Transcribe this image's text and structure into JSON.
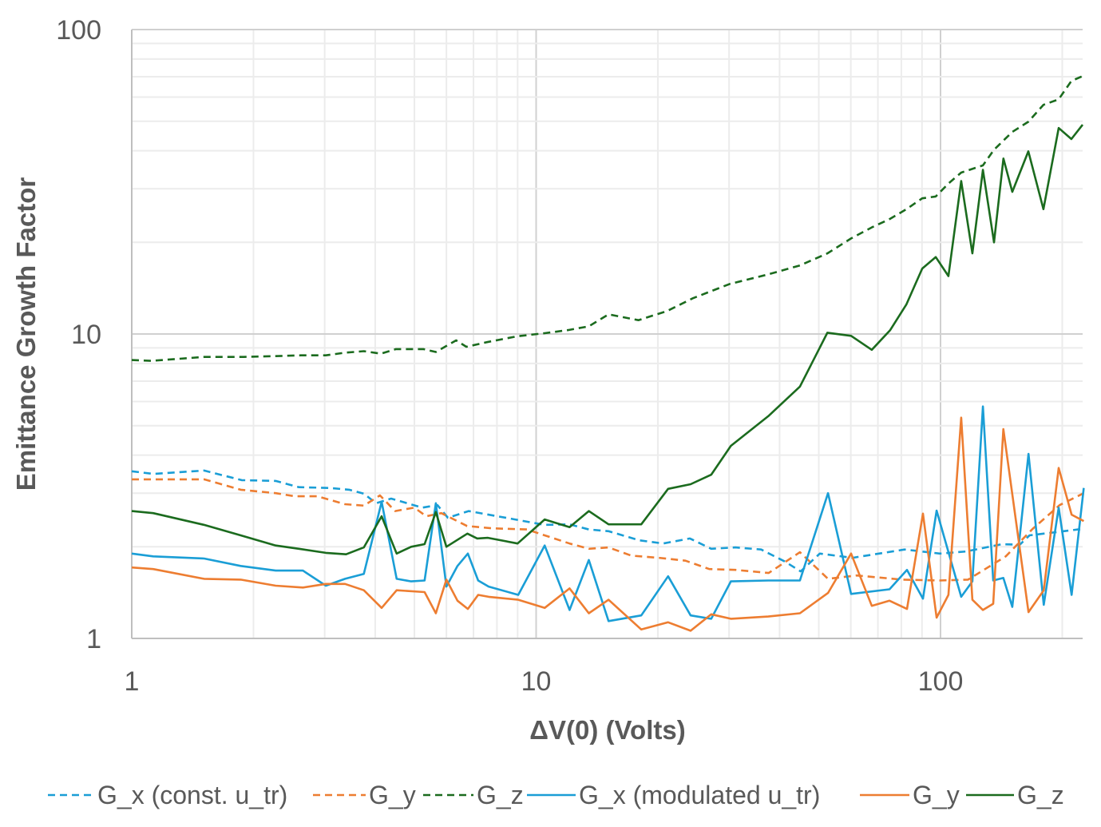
{
  "chart_data": {
    "type": "line",
    "xscale": "log",
    "yscale": "log",
    "xlabel": "ΔV(0) (Volts)",
    "ylabel": "Emittance Growth Factor",
    "xlim": [
      1,
      225
    ],
    "ylim": [
      1,
      100
    ],
    "x_ticks": [
      "1",
      "10",
      "100"
    ],
    "y_ticks": [
      "1",
      "10",
      "100"
    ],
    "grid": true,
    "legend_position": "bottom",
    "series": [
      {
        "name": "G_x (const. u_tr)",
        "color": "#1a9ed6",
        "dashed": true,
        "points": [
          [
            1,
            3.54
          ],
          [
            1.13,
            3.47
          ],
          [
            1.51,
            3.56
          ],
          [
            1.87,
            3.31
          ],
          [
            2.27,
            3.29
          ],
          [
            2.59,
            3.14
          ],
          [
            3.09,
            3.12
          ],
          [
            3.45,
            3.08
          ],
          [
            3.75,
            2.99
          ],
          [
            4.02,
            2.78
          ],
          [
            4.38,
            2.88
          ],
          [
            5.23,
            2.69
          ],
          [
            5.7,
            2.74
          ],
          [
            6.05,
            2.49
          ],
          [
            6.81,
            2.62
          ],
          [
            8.87,
            2.46
          ],
          [
            10.5,
            2.36
          ],
          [
            12.1,
            2.37
          ],
          [
            13.5,
            2.28
          ],
          [
            15.1,
            2.25
          ],
          [
            18.0,
            2.1
          ],
          [
            20.6,
            2.05
          ],
          [
            24.0,
            2.13
          ],
          [
            27.1,
            1.97
          ],
          [
            31.1,
            1.99
          ],
          [
            36.0,
            1.96
          ],
          [
            41.2,
            1.79
          ],
          [
            45.1,
            1.66
          ],
          [
            50.3,
            1.9
          ],
          [
            60.6,
            1.84
          ],
          [
            81.5,
            1.96
          ],
          [
            99.6,
            1.9
          ],
          [
            115.6,
            1.93
          ],
          [
            142,
            2.04
          ],
          [
            157,
            2.03
          ],
          [
            166,
            2.18
          ],
          [
            219,
            2.28
          ],
          [
            226,
            2.28
          ]
        ]
      },
      {
        "name": "G_y",
        "color": "#ed7d31",
        "dashed": true,
        "points": [
          [
            1,
            3.33
          ],
          [
            1.51,
            3.33
          ],
          [
            1.86,
            3.08
          ],
          [
            2.27,
            3.0
          ],
          [
            2.53,
            2.93
          ],
          [
            2.88,
            2.93
          ],
          [
            3.37,
            2.76
          ],
          [
            3.75,
            2.73
          ],
          [
            4.11,
            2.95
          ],
          [
            4.48,
            2.62
          ],
          [
            5.0,
            2.69
          ],
          [
            5.35,
            2.52
          ],
          [
            5.83,
            2.58
          ],
          [
            6.75,
            2.34
          ],
          [
            7.77,
            2.3
          ],
          [
            9.49,
            2.28
          ],
          [
            10.5,
            2.18
          ],
          [
            12.1,
            2.05
          ],
          [
            13.5,
            1.97
          ],
          [
            15.1,
            1.99
          ],
          [
            17.2,
            1.87
          ],
          [
            20.1,
            1.84
          ],
          [
            23.4,
            1.8
          ],
          [
            26.8,
            1.69
          ],
          [
            31.1,
            1.68
          ],
          [
            37.6,
            1.64
          ],
          [
            44.9,
            1.92
          ],
          [
            52.7,
            1.57
          ],
          [
            62.0,
            1.61
          ],
          [
            80.4,
            1.56
          ],
          [
            99.4,
            1.55
          ],
          [
            117,
            1.56
          ],
          [
            145,
            1.86
          ],
          [
            169,
            2.29
          ],
          [
            197,
            2.74
          ],
          [
            226,
            3.0
          ]
        ]
      },
      {
        "name": "G_z",
        "color": "#1b6b1e",
        "dashed": true,
        "points": [
          [
            1,
            8.21
          ],
          [
            1.12,
            8.16
          ],
          [
            1.51,
            8.41
          ],
          [
            1.89,
            8.41
          ],
          [
            2.25,
            8.46
          ],
          [
            2.62,
            8.51
          ],
          [
            3.02,
            8.51
          ],
          [
            3.37,
            8.68
          ],
          [
            3.75,
            8.78
          ],
          [
            4.13,
            8.62
          ],
          [
            4.5,
            8.92
          ],
          [
            5.26,
            8.92
          ],
          [
            5.65,
            8.73
          ],
          [
            6.34,
            9.53
          ],
          [
            6.72,
            9.08
          ],
          [
            7.56,
            9.4
          ],
          [
            8.99,
            9.83
          ],
          [
            10.5,
            10.06
          ],
          [
            12.0,
            10.3
          ],
          [
            13.5,
            10.6
          ],
          [
            15.1,
            11.6
          ],
          [
            17.9,
            11.1
          ],
          [
            21.1,
            11.9
          ],
          [
            24.4,
            13.1
          ],
          [
            30.1,
            14.6
          ],
          [
            37.5,
            15.7
          ],
          [
            44.9,
            16.8
          ],
          [
            52.5,
            18.4
          ],
          [
            60.1,
            20.6
          ],
          [
            67.6,
            22.4
          ],
          [
            75.1,
            23.9
          ],
          [
            82.3,
            25.7
          ],
          [
            90.1,
            27.9
          ],
          [
            97.3,
            28.3
          ],
          [
            104.6,
            31.2
          ],
          [
            112.5,
            33.9
          ],
          [
            127.3,
            35.8
          ],
          [
            135.6,
            40.3
          ],
          [
            150.5,
            46.1
          ],
          [
            164.9,
            49.8
          ],
          [
            179.7,
            56.6
          ],
          [
            196,
            59.0
          ],
          [
            210.7,
            67.8
          ],
          [
            224.6,
            70.3
          ]
        ]
      },
      {
        "name": "G_x (modulated u_tr)",
        "color": "#1a9ed6",
        "dashed": false,
        "points": [
          [
            1,
            1.9
          ],
          [
            1.13,
            1.86
          ],
          [
            1.51,
            1.83
          ],
          [
            1.86,
            1.73
          ],
          [
            2.27,
            1.67
          ],
          [
            2.65,
            1.67
          ],
          [
            3.02,
            1.49
          ],
          [
            3.37,
            1.57
          ],
          [
            3.75,
            1.63
          ],
          [
            4.15,
            2.81
          ],
          [
            4.52,
            1.57
          ],
          [
            4.91,
            1.54
          ],
          [
            5.3,
            1.55
          ],
          [
            5.65,
            2.78
          ],
          [
            6.0,
            1.48
          ],
          [
            6.39,
            1.73
          ],
          [
            6.78,
            1.9
          ],
          [
            7.19,
            1.55
          ],
          [
            7.63,
            1.48
          ],
          [
            9.03,
            1.39
          ],
          [
            10.5,
            2.02
          ],
          [
            12.1,
            1.24
          ],
          [
            13.5,
            1.81
          ],
          [
            15.1,
            1.14
          ],
          [
            18.2,
            1.19
          ],
          [
            21.2,
            1.6
          ],
          [
            24.1,
            1.19
          ],
          [
            27.1,
            1.16
          ],
          [
            30.3,
            1.54
          ],
          [
            37.5,
            1.55
          ],
          [
            44.9,
            1.55
          ],
          [
            52.7,
            3.0
          ],
          [
            60.1,
            1.4
          ],
          [
            74.8,
            1.45
          ],
          [
            82.6,
            1.68
          ],
          [
            90.5,
            1.35
          ],
          [
            97.8,
            2.63
          ],
          [
            112.5,
            1.37
          ],
          [
            119.9,
            1.54
          ],
          [
            127.3,
            5.78
          ],
          [
            135,
            1.55
          ],
          [
            143,
            1.58
          ],
          [
            150.5,
            1.27
          ],
          [
            165,
            4.04
          ],
          [
            180,
            1.29
          ],
          [
            196,
            2.69
          ],
          [
            211,
            1.39
          ],
          [
            226,
            3.12
          ]
        ]
      },
      {
        "name": "G_y",
        "color": "#ed7d31",
        "dashed": false,
        "points": [
          [
            1,
            1.71
          ],
          [
            1.13,
            1.69
          ],
          [
            1.51,
            1.57
          ],
          [
            1.86,
            1.56
          ],
          [
            2.27,
            1.49
          ],
          [
            2.65,
            1.47
          ],
          [
            3.02,
            1.51
          ],
          [
            3.37,
            1.51
          ],
          [
            3.75,
            1.44
          ],
          [
            4.15,
            1.26
          ],
          [
            4.52,
            1.44
          ],
          [
            5.3,
            1.42
          ],
          [
            5.65,
            1.21
          ],
          [
            6.0,
            1.56
          ],
          [
            6.39,
            1.33
          ],
          [
            6.78,
            1.25
          ],
          [
            7.19,
            1.39
          ],
          [
            7.63,
            1.37
          ],
          [
            9.03,
            1.34
          ],
          [
            10.5,
            1.26
          ],
          [
            12.1,
            1.46
          ],
          [
            13.5,
            1.21
          ],
          [
            15.1,
            1.34
          ],
          [
            18.2,
            1.07
          ],
          [
            21.2,
            1.13
          ],
          [
            24.1,
            1.06
          ],
          [
            27.1,
            1.2
          ],
          [
            30.3,
            1.16
          ],
          [
            37.5,
            1.18
          ],
          [
            44.9,
            1.21
          ],
          [
            52.7,
            1.41
          ],
          [
            60.1,
            1.9
          ],
          [
            67.6,
            1.28
          ],
          [
            74.8,
            1.33
          ],
          [
            82.6,
            1.25
          ],
          [
            90.5,
            2.57
          ],
          [
            97.8,
            1.17
          ],
          [
            104.6,
            1.39
          ],
          [
            112.5,
            5.31
          ],
          [
            119.9,
            1.34
          ],
          [
            127.3,
            1.24
          ],
          [
            135,
            1.3
          ],
          [
            143,
            4.87
          ],
          [
            165,
            1.22
          ],
          [
            180,
            1.44
          ],
          [
            196,
            3.63
          ],
          [
            211,
            2.55
          ],
          [
            226,
            2.43
          ]
        ]
      },
      {
        "name": "G_z",
        "color": "#1b6b1e",
        "dashed": false,
        "points": [
          [
            1,
            2.62
          ],
          [
            1.13,
            2.58
          ],
          [
            1.51,
            2.36
          ],
          [
            1.86,
            2.18
          ],
          [
            2.27,
            2.02
          ],
          [
            2.59,
            1.97
          ],
          [
            3.02,
            1.91
          ],
          [
            3.39,
            1.89
          ],
          [
            3.75,
            1.99
          ],
          [
            4.15,
            2.52
          ],
          [
            4.52,
            1.9
          ],
          [
            4.91,
            2.0
          ],
          [
            5.3,
            2.04
          ],
          [
            5.65,
            2.6
          ],
          [
            6.0,
            2.0
          ],
          [
            6.76,
            2.21
          ],
          [
            7.15,
            2.13
          ],
          [
            7.6,
            2.14
          ],
          [
            9.0,
            2.05
          ],
          [
            10.5,
            2.46
          ],
          [
            12.1,
            2.32
          ],
          [
            13.5,
            2.62
          ],
          [
            15.1,
            2.37
          ],
          [
            18.2,
            2.37
          ],
          [
            21.2,
            3.1
          ],
          [
            24.1,
            3.21
          ],
          [
            27.1,
            3.45
          ],
          [
            30.3,
            4.29
          ],
          [
            37.5,
            5.37
          ],
          [
            44.9,
            6.72
          ],
          [
            52.5,
            10.1
          ],
          [
            60.1,
            9.86
          ],
          [
            67.6,
            8.87
          ],
          [
            75.1,
            10.3
          ],
          [
            82.3,
            12.5
          ],
          [
            90.1,
            16.4
          ],
          [
            97.3,
            17.9
          ],
          [
            104.6,
            15.5
          ],
          [
            112.5,
            31.8
          ],
          [
            119.9,
            18.4
          ],
          [
            127.3,
            34.6
          ],
          [
            135.6,
            20.0
          ],
          [
            143.1,
            37.7
          ],
          [
            150.5,
            29.3
          ],
          [
            164.9,
            39.8
          ],
          [
            179.7,
            25.7
          ],
          [
            196,
            47.5
          ],
          [
            210.7,
            43.7
          ],
          [
            224.6,
            48.7
          ]
        ]
      }
    ]
  }
}
